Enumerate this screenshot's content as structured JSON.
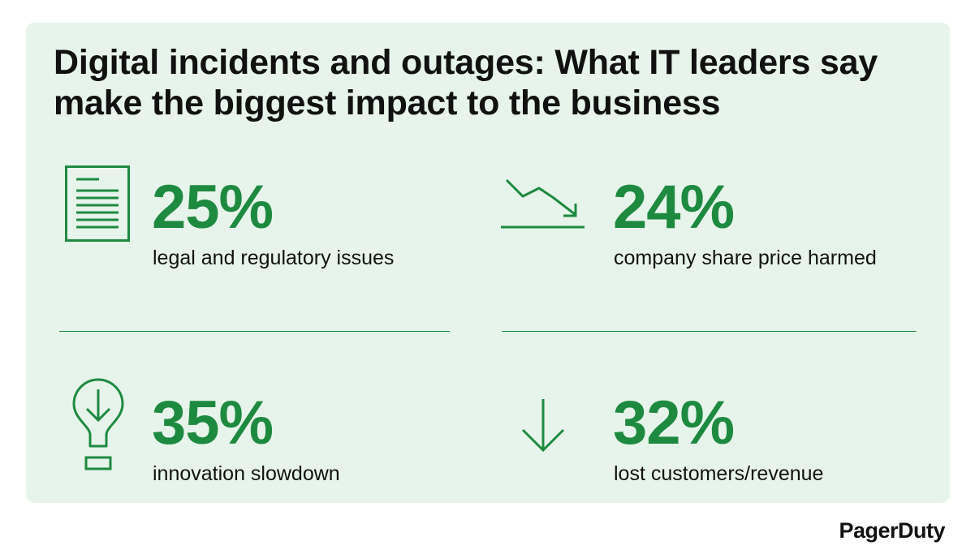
{
  "title": "Digital incidents and outages: What IT leaders say make the biggest impact to the business",
  "stats": [
    {
      "value": "25%",
      "label": "legal and regulatory issues",
      "icon": "document-icon"
    },
    {
      "value": "24%",
      "label": "company share price harmed",
      "icon": "trend-down-icon"
    },
    {
      "value": "35%",
      "label": "innovation slowdown",
      "icon": "lightbulb-down-icon"
    },
    {
      "value": "32%",
      "label": "lost customers/revenue",
      "icon": "arrow-down-icon"
    }
  ],
  "brand": "PagerDuty",
  "colors": {
    "accent": "#1e8a40",
    "background": "#e7f4eb",
    "text": "#111111"
  }
}
